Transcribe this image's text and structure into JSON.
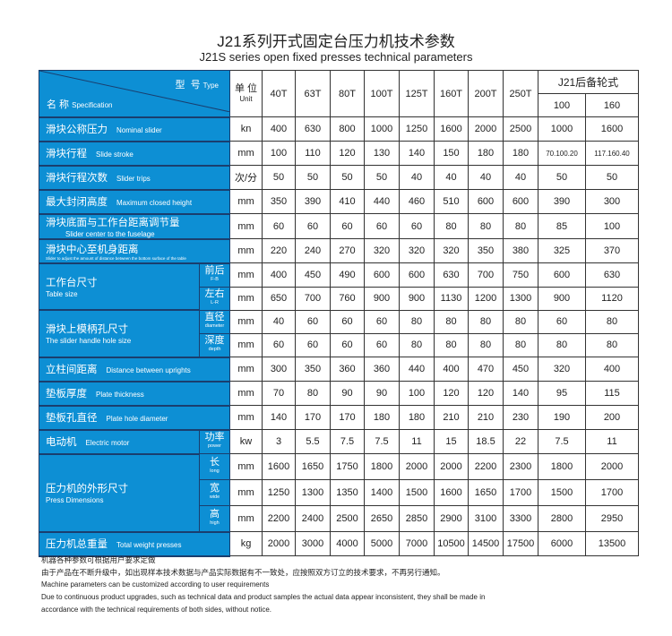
{
  "title": "J21系列开式固定台压力机技术参数",
  "subtitle": "J21S series open fixed presses technical parameters",
  "header": {
    "type_cn": "型  号",
    "type_en": "Type",
    "spec_cn": "名 称",
    "spec_en": "Specification",
    "unit_cn": "单 位",
    "unit_en": "Unit",
    "models": [
      "40T",
      "63T",
      "80T",
      "100T",
      "125T",
      "160T",
      "200T",
      "250T"
    ],
    "backup_title": "J21后备轮式",
    "backup_models": [
      "100",
      "160"
    ]
  },
  "rows": [
    {
      "cn": "滑块公称压力",
      "en": "Nominal slider",
      "subs": [
        {
          "unit": "kn",
          "values": [
            "400",
            "630",
            "800",
            "1000",
            "1250",
            "1600",
            "2000",
            "2500",
            "1000",
            "1600"
          ]
        }
      ]
    },
    {
      "cn": "滑块行程",
      "en": "Slide stroke",
      "subs": [
        {
          "unit": "mm",
          "values": [
            "100",
            "110",
            "120",
            "130",
            "140",
            "150",
            "180",
            "180",
            "70.100.20",
            "117.160.40"
          ]
        }
      ]
    },
    {
      "cn": "滑块行程次数",
      "en": "Slider trips",
      "subs": [
        {
          "unit": "次/分",
          "values": [
            "50",
            "50",
            "50",
            "50",
            "40",
            "40",
            "40",
            "40",
            "50",
            "50"
          ]
        }
      ]
    },
    {
      "cn": "最大封闭高度",
      "en": "Maximum closed height",
      "subs": [
        {
          "unit": "mm",
          "values": [
            "350",
            "390",
            "410",
            "440",
            "460",
            "510",
            "600",
            "600",
            "390",
            "300"
          ]
        }
      ]
    },
    {
      "cn": "滑块底面与工作台距离调节量",
      "en": "Slider center to the fuselage",
      "layout": "stack",
      "subs": [
        {
          "unit": "mm",
          "values": [
            "60",
            "60",
            "60",
            "60",
            "60",
            "80",
            "80",
            "80",
            "85",
            "100"
          ]
        }
      ]
    },
    {
      "cn": "滑块中心至机身距离",
      "en": "Slider to adjust the amount of distance between the bottom surface of the table",
      "layout": "tiny",
      "subs": [
        {
          "unit": "mm",
          "values": [
            "220",
            "240",
            "270",
            "320",
            "320",
            "320",
            "350",
            "380",
            "325",
            "370"
          ]
        }
      ]
    },
    {
      "cn": "工作台尺寸",
      "en": "Table size",
      "layout": "stack",
      "subs": [
        {
          "cn": "前后",
          "en": "F-B",
          "unit": "mm",
          "values": [
            "400",
            "450",
            "490",
            "600",
            "600",
            "630",
            "700",
            "750",
            "600",
            "630"
          ]
        },
        {
          "cn": "左右",
          "en": "L-R",
          "unit": "mm",
          "values": [
            "650",
            "700",
            "760",
            "900",
            "900",
            "1130",
            "1200",
            "1300",
            "900",
            "1120"
          ]
        }
      ]
    },
    {
      "cn": "滑块上模柄孔尺寸",
      "en": "The slider handle hole size",
      "layout": "stack",
      "subs": [
        {
          "cn": "直径",
          "en": "diameter",
          "unit": "mm",
          "values": [
            "40",
            "60",
            "60",
            "60",
            "80",
            "80",
            "80",
            "80",
            "60",
            "80"
          ]
        },
        {
          "cn": "深度",
          "en": "depth",
          "unit": "mm",
          "values": [
            "60",
            "60",
            "60",
            "60",
            "80",
            "80",
            "80",
            "80",
            "80",
            "80"
          ]
        }
      ]
    },
    {
      "cn": "立柱间距离",
      "en": "Distance between uprights",
      "subs": [
        {
          "unit": "mm",
          "values": [
            "300",
            "350",
            "360",
            "360",
            "440",
            "400",
            "470",
            "450",
            "320",
            "400"
          ]
        }
      ]
    },
    {
      "cn": "垫板厚度",
      "en": "Plate thickness",
      "subs": [
        {
          "unit": "mm",
          "values": [
            "70",
            "80",
            "90",
            "90",
            "100",
            "120",
            "120",
            "140",
            "95",
            "115"
          ]
        }
      ]
    },
    {
      "cn": "垫板孔直径",
      "en": "Plate hole diameter",
      "subs": [
        {
          "unit": "mm",
          "values": [
            "140",
            "170",
            "170",
            "180",
            "180",
            "210",
            "210",
            "230",
            "190",
            "200"
          ]
        }
      ]
    },
    {
      "cn": "电动机",
      "en": "Electric motor",
      "subs": [
        {
          "cn": "功率",
          "en": "power",
          "unit": "kw",
          "values": [
            "3",
            "5.5",
            "7.5",
            "7.5",
            "11",
            "15",
            "18.5",
            "22",
            "7.5",
            "11"
          ]
        }
      ]
    },
    {
      "cn": "压力机的外形尺寸",
      "en": "Press Dimensions",
      "layout": "stack",
      "subs": [
        {
          "cn": "长",
          "en": "long",
          "unit": "mm",
          "values": [
            "1600",
            "1650",
            "1750",
            "1800",
            "2000",
            "2000",
            "2200",
            "2300",
            "1800",
            "2000"
          ]
        },
        {
          "cn": "宽",
          "en": "wide",
          "unit": "mm",
          "values": [
            "1250",
            "1300",
            "1350",
            "1400",
            "1500",
            "1600",
            "1650",
            "1700",
            "1500",
            "1700"
          ]
        },
        {
          "cn": "高",
          "en": "high",
          "unit": "mm",
          "values": [
            "2200",
            "2400",
            "2500",
            "2650",
            "2850",
            "2900",
            "3100",
            "3300",
            "2800",
            "2950"
          ]
        }
      ]
    },
    {
      "cn": "压力机总重量",
      "en": "Total weight presses",
      "subs": [
        {
          "unit": "kg",
          "values": [
            "2000",
            "3000",
            "4000",
            "5000",
            "7000",
            "10500",
            "14500",
            "17500",
            "6000",
            "13500"
          ]
        }
      ]
    }
  ],
  "notes": [
    "机器各种参数可根据用户要求定做",
    "由于产品在不断升级中，如出现样本技术数据与产品实际数据有不一致处，应按照双方订立的技术要求，不再另行通知。",
    "Machine parameters can be customized according to user requirements",
    "Due to continuous product upgrades, such as technical data and product samples the actual data appear inconsistent, they shall be made in",
    "accordance with the technical requirements of both sides, without notice."
  ],
  "colors": {
    "header_blue": "#0d8fd4"
  }
}
